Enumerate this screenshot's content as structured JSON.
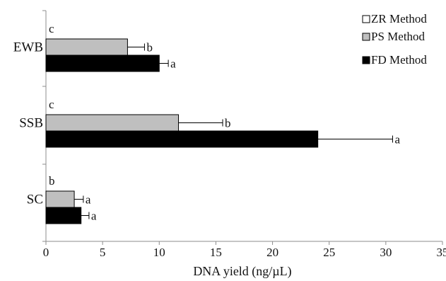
{
  "chart_data": {
    "type": "bar",
    "orientation": "horizontal",
    "title": "",
    "xlabel": "DNA yield (ng/µL)",
    "ylabel": "",
    "xlim": [
      0,
      35
    ],
    "xticks": [
      0,
      5,
      10,
      15,
      20,
      25,
      30,
      35
    ],
    "categories": [
      "EWB",
      "SSB",
      "SC"
    ],
    "series": [
      {
        "name": "ZR Method",
        "color": "#ffffff",
        "values": [
          0,
          0,
          0
        ],
        "errors": [
          0,
          0,
          0
        ],
        "sig_labels": [
          "c",
          "c",
          "b"
        ]
      },
      {
        "name": "PS Method",
        "color": "#bfbfbf",
        "values": [
          7.2,
          11.7,
          2.5
        ],
        "errors": [
          1.5,
          3.9,
          0.8
        ],
        "sig_labels": [
          "b",
          "b",
          "a"
        ]
      },
      {
        "name": "FD Method",
        "color": "#000000",
        "values": [
          10.0,
          24.0,
          3.1
        ],
        "errors": [
          0.8,
          6.6,
          0.7
        ],
        "sig_labels": [
          "a",
          "a",
          "a"
        ]
      }
    ],
    "grid": false,
    "legend_position": "top-right"
  }
}
